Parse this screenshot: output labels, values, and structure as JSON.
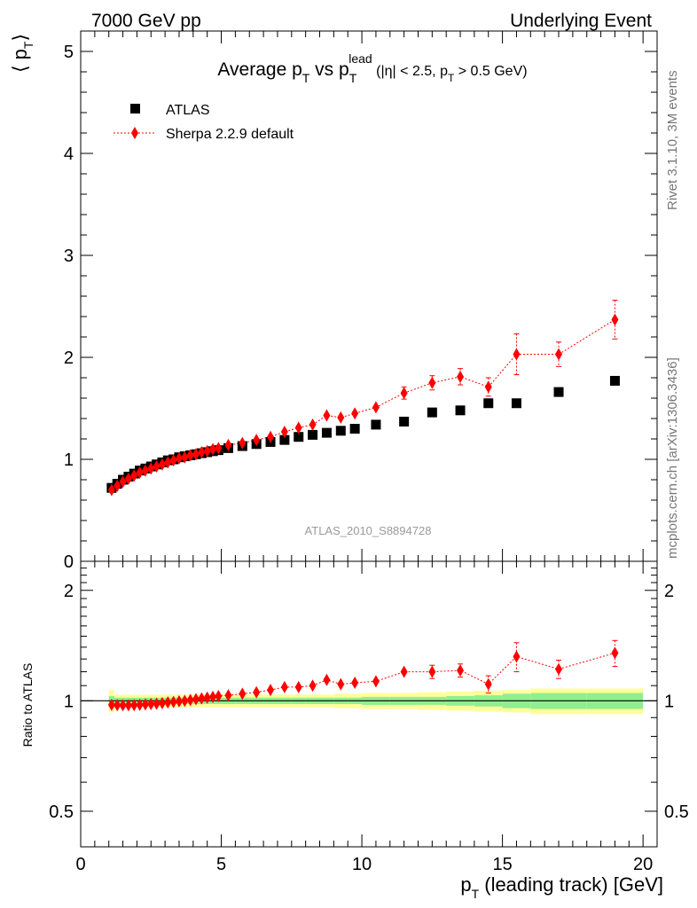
{
  "header": {
    "left": "7000 GeV pp",
    "right": "Underlying Event"
  },
  "side_labels": {
    "rivet": "Rivet 3.1.10,  3M events",
    "mcplots": "mcplots.cern.ch [arXiv:1306.3436]"
  },
  "watermark": "ATLAS_2010_S8894728",
  "colors": {
    "data": "#000000",
    "mc": "#ff0000",
    "band_inner": "#90ee90",
    "band_outer": "#ffff99"
  },
  "chart_data": [
    {
      "type": "scatter",
      "panel": "main",
      "title_parts": {
        "a": "Average p",
        "a_sub": "T",
        "b": " vs p",
        "b_sub": "T",
        "b_sup": "lead",
        "c": " (|η| < 2.5, p",
        "c_sub": "T",
        "d": " > 0.5 GeV)"
      },
      "ylabel_parts": {
        "main": "⟨ p",
        "sub": "T",
        "end": "⟩"
      },
      "xlim": [
        0,
        20.5
      ],
      "ylim": [
        0,
        5.2
      ],
      "yticks": [
        0,
        1,
        2,
        3,
        4,
        5
      ],
      "ytick_labels": [
        "0",
        "1",
        "2",
        "3",
        "4",
        "5"
      ],
      "legend": {
        "placement": "top-left",
        "entries": [
          "ATLAS",
          "Sherpa 2.2.9 default"
        ]
      },
      "series": [
        {
          "name": "ATLAS",
          "marker": "square",
          "x": [
            1.1,
            1.3,
            1.5,
            1.7,
            1.9,
            2.1,
            2.3,
            2.5,
            2.7,
            2.9,
            3.1,
            3.3,
            3.5,
            3.7,
            3.9,
            4.1,
            4.3,
            4.5,
            4.7,
            4.9,
            5.25,
            5.75,
            6.25,
            6.75,
            7.25,
            7.75,
            8.25,
            8.75,
            9.25,
            9.75,
            10.5,
            11.5,
            12.5,
            13.5,
            14.5,
            15.5,
            17.0,
            19.0
          ],
          "y": [
            0.72,
            0.76,
            0.8,
            0.83,
            0.86,
            0.89,
            0.91,
            0.93,
            0.95,
            0.97,
            0.99,
            1.0,
            1.02,
            1.03,
            1.04,
            1.05,
            1.06,
            1.07,
            1.08,
            1.09,
            1.11,
            1.13,
            1.15,
            1.17,
            1.19,
            1.22,
            1.24,
            1.26,
            1.28,
            1.3,
            1.34,
            1.37,
            1.46,
            1.48,
            1.55,
            1.55,
            1.66,
            1.77
          ],
          "yerr": [
            0,
            0,
            0,
            0,
            0,
            0,
            0,
            0,
            0,
            0,
            0,
            0,
            0,
            0,
            0,
            0,
            0,
            0,
            0,
            0,
            0,
            0,
            0,
            0,
            0,
            0,
            0,
            0,
            0,
            0,
            0,
            0,
            0,
            0,
            0,
            0,
            0,
            0
          ]
        },
        {
          "name": "Sherpa 2.2.9 default",
          "marker": "diamond",
          "line": "dotted",
          "x": [
            1.1,
            1.3,
            1.5,
            1.7,
            1.9,
            2.1,
            2.3,
            2.5,
            2.7,
            2.9,
            3.1,
            3.3,
            3.5,
            3.7,
            3.9,
            4.1,
            4.3,
            4.5,
            4.7,
            4.9,
            5.25,
            5.75,
            6.25,
            6.75,
            7.25,
            7.75,
            8.25,
            8.75,
            9.25,
            9.75,
            10.5,
            11.5,
            12.5,
            13.5,
            14.5,
            15.5,
            17.0,
            19.0
          ],
          "y": [
            0.7,
            0.74,
            0.78,
            0.81,
            0.84,
            0.87,
            0.89,
            0.91,
            0.93,
            0.95,
            0.97,
            0.99,
            1.01,
            1.02,
            1.04,
            1.05,
            1.07,
            1.08,
            1.1,
            1.11,
            1.14,
            1.16,
            1.19,
            1.22,
            1.27,
            1.31,
            1.34,
            1.43,
            1.41,
            1.45,
            1.51,
            1.65,
            1.75,
            1.81,
            1.71,
            2.03,
            2.03,
            2.37
          ],
          "yerr": [
            0.02,
            0.02,
            0.02,
            0.02,
            0.02,
            0.02,
            0.02,
            0.02,
            0.02,
            0.02,
            0.02,
            0.02,
            0.02,
            0.02,
            0.02,
            0.02,
            0.02,
            0.02,
            0.02,
            0.02,
            0.02,
            0.02,
            0.02,
            0.03,
            0.03,
            0.03,
            0.03,
            0.04,
            0.04,
            0.04,
            0.05,
            0.06,
            0.07,
            0.08,
            0.09,
            0.2,
            0.12,
            0.19
          ]
        }
      ]
    },
    {
      "type": "scatter",
      "panel": "ratio",
      "ylabel": "Ratio to ATLAS",
      "xlabel_parts": {
        "main": "p",
        "sub": "T",
        "rest": " (leading track) [GeV]"
      },
      "xlim": [
        0,
        20.5
      ],
      "xticks": [
        0,
        5,
        10,
        15,
        20
      ],
      "xtick_labels": [
        "0",
        "5",
        "10",
        "15",
        "20"
      ],
      "ylim": [
        0.4,
        2.4
      ],
      "yscale": "log",
      "yticks": [
        0.5,
        1,
        2
      ],
      "ytick_labels": [
        "0.5",
        "1",
        "2"
      ],
      "reference_line": 1,
      "band": {
        "edges": [
          1.0,
          1.2,
          1.4,
          1.6,
          1.8,
          2.0,
          2.2,
          2.4,
          2.6,
          2.8,
          3.0,
          3.2,
          3.4,
          3.6,
          3.8,
          4.0,
          4.2,
          4.4,
          4.6,
          4.8,
          5.0,
          5.5,
          6.0,
          6.5,
          7.0,
          7.5,
          8.0,
          8.5,
          9.0,
          9.5,
          10.0,
          11.0,
          12.0,
          13.0,
          14.0,
          15.0,
          16.0,
          18.0,
          20.0
        ],
        "inner": [
          0.03,
          0.02,
          0.02,
          0.02,
          0.02,
          0.02,
          0.02,
          0.02,
          0.02,
          0.02,
          0.02,
          0.02,
          0.02,
          0.02,
          0.02,
          0.02,
          0.02,
          0.02,
          0.02,
          0.02,
          0.02,
          0.02,
          0.02,
          0.02,
          0.02,
          0.02,
          0.02,
          0.02,
          0.02,
          0.02,
          0.025,
          0.025,
          0.025,
          0.03,
          0.035,
          0.045,
          0.05,
          0.05
        ],
        "outer": [
          0.07,
          0.04,
          0.04,
          0.04,
          0.04,
          0.04,
          0.04,
          0.04,
          0.04,
          0.04,
          0.04,
          0.04,
          0.04,
          0.04,
          0.04,
          0.04,
          0.04,
          0.04,
          0.04,
          0.04,
          0.04,
          0.04,
          0.04,
          0.04,
          0.04,
          0.04,
          0.04,
          0.04,
          0.045,
          0.045,
          0.05,
          0.05,
          0.055,
          0.06,
          0.065,
          0.07,
          0.08,
          0.08
        ]
      },
      "series": [
        {
          "name": "Sherpa 2.2.9 default",
          "marker": "diamond",
          "line": "dotted",
          "x": [
            1.1,
            1.3,
            1.5,
            1.7,
            1.9,
            2.1,
            2.3,
            2.5,
            2.7,
            2.9,
            3.1,
            3.3,
            3.5,
            3.7,
            3.9,
            4.1,
            4.3,
            4.5,
            4.7,
            4.9,
            5.25,
            5.75,
            6.25,
            6.75,
            7.25,
            7.75,
            8.25,
            8.75,
            9.25,
            9.75,
            10.5,
            11.5,
            12.5,
            13.5,
            14.5,
            15.5,
            17.0,
            19.0
          ],
          "y": [
            0.975,
            0.973,
            0.972,
            0.972,
            0.973,
            0.975,
            0.978,
            0.98,
            0.982,
            0.985,
            0.99,
            0.993,
            0.997,
            1.0,
            1.005,
            1.01,
            1.015,
            1.02,
            1.025,
            1.03,
            1.035,
            1.045,
            1.055,
            1.07,
            1.09,
            1.09,
            1.1,
            1.14,
            1.11,
            1.12,
            1.13,
            1.2,
            1.2,
            1.21,
            1.11,
            1.32,
            1.22,
            1.35
          ],
          "yerr": [
            0.015,
            0.015,
            0.015,
            0.015,
            0.015,
            0.015,
            0.015,
            0.015,
            0.015,
            0.015,
            0.015,
            0.015,
            0.015,
            0.015,
            0.015,
            0.015,
            0.015,
            0.015,
            0.015,
            0.015,
            0.015,
            0.015,
            0.015,
            0.02,
            0.02,
            0.02,
            0.02,
            0.03,
            0.03,
            0.03,
            0.03,
            0.04,
            0.05,
            0.05,
            0.06,
            0.12,
            0.07,
            0.11
          ]
        }
      ]
    }
  ]
}
